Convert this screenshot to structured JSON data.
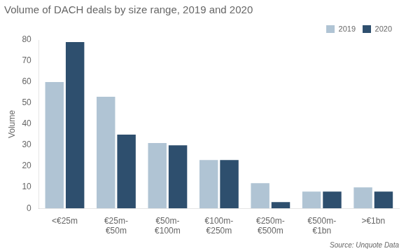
{
  "chart_data": {
    "type": "bar",
    "title": "Volume of DACH deals by size range, 2019 and 2020",
    "ylabel": "Volume",
    "categories": [
      "<€25m",
      "€25m-\n€50m",
      "€50m-\n€100m",
      "€100m-\n€250m",
      "€250m-\n€500m",
      "€500m-\n€1bn",
      ">€1bn"
    ],
    "series": [
      {
        "name": "2019",
        "color": "#b0c4d4",
        "values": [
          60,
          53,
          31,
          23,
          12,
          8,
          10
        ]
      },
      {
        "name": "2020",
        "color": "#2e4f6e",
        "values": [
          79,
          35,
          30,
          23,
          3,
          8,
          8
        ]
      }
    ],
    "ylim": [
      0,
      80
    ],
    "yticks": [
      0,
      10,
      20,
      30,
      40,
      50,
      60,
      70,
      80
    ],
    "grid": false,
    "legend": "upper right",
    "annotations": [
      "Source: Unquote Data"
    ]
  }
}
